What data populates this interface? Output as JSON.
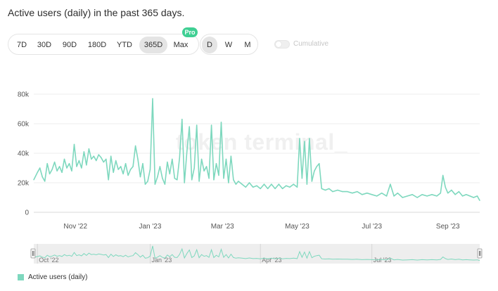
{
  "header": {
    "title": "Active users (daily) in the past 365 days."
  },
  "range_buttons": [
    "7D",
    "30D",
    "90D",
    "180D",
    "YTD",
    "365D",
    "Max"
  ],
  "range_active": "365D",
  "pro_badge": "Pro",
  "granularity_buttons": [
    "D",
    "W",
    "M"
  ],
  "granularity_active": "D",
  "cumulative_label": "Cumulative",
  "watermark": "token terminal_",
  "colors": {
    "series": "#7ed8be",
    "grid": "#ececec"
  },
  "navigator": {
    "labels": [
      "Oct '22",
      "Jan '23",
      "Apr '23",
      "Jul '23"
    ]
  },
  "chart_data": {
    "type": "line",
    "x_type": "date",
    "x_range": [
      "2022-09-28",
      "2023-09-27"
    ],
    "x_tick_labels": [
      "Nov '22",
      "Jan '23",
      "Mar '23",
      "May '23",
      "Jul '23",
      "Sep '23"
    ],
    "ylim": [
      0,
      80000
    ],
    "y_ticks": [
      0,
      20000,
      40000,
      60000,
      80000
    ],
    "y_tick_labels": [
      "0",
      "20k",
      "40k",
      "60k",
      "80k"
    ],
    "grid": true,
    "legend": {
      "position": "bottom-left"
    },
    "series": [
      {
        "name": "Active users (daily)",
        "color": "#7ed8be",
        "points": [
          [
            "2022-09-28",
            22000
          ],
          [
            "2022-10-01",
            27000
          ],
          [
            "2022-10-03",
            30000
          ],
          [
            "2022-10-05",
            24000
          ],
          [
            "2022-10-07",
            21000
          ],
          [
            "2022-10-09",
            33000
          ],
          [
            "2022-10-11",
            26000
          ],
          [
            "2022-10-13",
            29000
          ],
          [
            "2022-10-15",
            34000
          ],
          [
            "2022-10-17",
            28000
          ],
          [
            "2022-10-19",
            31000
          ],
          [
            "2022-10-21",
            27000
          ],
          [
            "2022-10-23",
            36000
          ],
          [
            "2022-10-25",
            30000
          ],
          [
            "2022-10-27",
            33000
          ],
          [
            "2022-10-29",
            28000
          ],
          [
            "2022-10-31",
            46000
          ],
          [
            "2022-11-02",
            31000
          ],
          [
            "2022-11-04",
            35000
          ],
          [
            "2022-11-06",
            30000
          ],
          [
            "2022-11-08",
            41000
          ],
          [
            "2022-11-10",
            32000
          ],
          [
            "2022-11-12",
            43000
          ],
          [
            "2022-11-14",
            36000
          ],
          [
            "2022-11-16",
            38000
          ],
          [
            "2022-11-18",
            35000
          ],
          [
            "2022-11-20",
            39000
          ],
          [
            "2022-11-22",
            37000
          ],
          [
            "2022-11-24",
            34000
          ],
          [
            "2022-11-26",
            36000
          ],
          [
            "2022-11-28",
            22000
          ],
          [
            "2022-11-30",
            38000
          ],
          [
            "2022-12-02",
            27000
          ],
          [
            "2022-12-04",
            35000
          ],
          [
            "2022-12-06",
            29000
          ],
          [
            "2022-12-08",
            31000
          ],
          [
            "2022-12-10",
            26000
          ],
          [
            "2022-12-12",
            33000
          ],
          [
            "2022-12-14",
            25000
          ],
          [
            "2022-12-16",
            29000
          ],
          [
            "2022-12-18",
            31000
          ],
          [
            "2022-12-20",
            45000
          ],
          [
            "2022-12-22",
            36000
          ],
          [
            "2022-12-24",
            24000
          ],
          [
            "2022-12-26",
            33000
          ],
          [
            "2022-12-28",
            19000
          ],
          [
            "2022-12-30",
            21000
          ],
          [
            "2023-01-01",
            29000
          ],
          [
            "2023-01-03",
            77000
          ],
          [
            "2023-01-05",
            19000
          ],
          [
            "2023-01-07",
            24000
          ],
          [
            "2023-01-09",
            31000
          ],
          [
            "2023-01-11",
            23000
          ],
          [
            "2023-01-13",
            19000
          ],
          [
            "2023-01-15",
            34000
          ],
          [
            "2023-01-17",
            26000
          ],
          [
            "2023-01-19",
            36000
          ],
          [
            "2023-01-21",
            23000
          ],
          [
            "2023-01-23",
            22000
          ],
          [
            "2023-01-25",
            37000
          ],
          [
            "2023-01-27",
            63000
          ],
          [
            "2023-01-29",
            20000
          ],
          [
            "2023-01-31",
            41000
          ],
          [
            "2023-02-02",
            58000
          ],
          [
            "2023-02-04",
            22000
          ],
          [
            "2023-02-06",
            30000
          ],
          [
            "2023-02-08",
            59000
          ],
          [
            "2023-02-10",
            21000
          ],
          [
            "2023-02-12",
            36000
          ],
          [
            "2023-02-14",
            28000
          ],
          [
            "2023-02-16",
            31000
          ],
          [
            "2023-02-18",
            23000
          ],
          [
            "2023-02-20",
            59000
          ],
          [
            "2023-02-22",
            22000
          ],
          [
            "2023-02-24",
            33000
          ],
          [
            "2023-02-26",
            25000
          ],
          [
            "2023-02-28",
            61000
          ],
          [
            "2023-03-02",
            23000
          ],
          [
            "2023-03-04",
            36000
          ],
          [
            "2023-03-06",
            20000
          ],
          [
            "2023-03-08",
            38000
          ],
          [
            "2023-03-10",
            22000
          ],
          [
            "2023-03-12",
            19000
          ],
          [
            "2023-03-14",
            21000
          ],
          [
            "2023-03-17",
            19000
          ],
          [
            "2023-03-20",
            17000
          ],
          [
            "2023-03-23",
            20000
          ],
          [
            "2023-03-26",
            17000
          ],
          [
            "2023-03-29",
            18000
          ],
          [
            "2023-04-01",
            16000
          ],
          [
            "2023-04-04",
            19000
          ],
          [
            "2023-04-07",
            16000
          ],
          [
            "2023-04-10",
            19000
          ],
          [
            "2023-04-13",
            16000
          ],
          [
            "2023-04-16",
            19000
          ],
          [
            "2023-04-19",
            16000
          ],
          [
            "2023-04-22",
            18000
          ],
          [
            "2023-04-25",
            17000
          ],
          [
            "2023-04-28",
            19000
          ],
          [
            "2023-05-01",
            17000
          ],
          [
            "2023-05-03",
            50000
          ],
          [
            "2023-05-05",
            23000
          ],
          [
            "2023-05-07",
            48000
          ],
          [
            "2023-05-09",
            19000
          ],
          [
            "2023-05-11",
            50000
          ],
          [
            "2023-05-13",
            21000
          ],
          [
            "2023-05-15",
            28000
          ],
          [
            "2023-05-17",
            31000
          ],
          [
            "2023-05-19",
            33000
          ],
          [
            "2023-05-21",
            16000
          ],
          [
            "2023-05-24",
            15000
          ],
          [
            "2023-05-27",
            16000
          ],
          [
            "2023-05-30",
            14000
          ],
          [
            "2023-06-03",
            15000
          ],
          [
            "2023-06-07",
            14000
          ],
          [
            "2023-06-11",
            14000
          ],
          [
            "2023-06-15",
            13000
          ],
          [
            "2023-06-19",
            14000
          ],
          [
            "2023-06-23",
            12000
          ],
          [
            "2023-06-27",
            13000
          ],
          [
            "2023-07-01",
            12000
          ],
          [
            "2023-07-05",
            11000
          ],
          [
            "2023-07-09",
            13000
          ],
          [
            "2023-07-13",
            11000
          ],
          [
            "2023-07-16",
            19000
          ],
          [
            "2023-07-19",
            11000
          ],
          [
            "2023-07-22",
            13000
          ],
          [
            "2023-07-26",
            10000
          ],
          [
            "2023-07-30",
            11000
          ],
          [
            "2023-08-03",
            12000
          ],
          [
            "2023-08-07",
            10000
          ],
          [
            "2023-08-11",
            12000
          ],
          [
            "2023-08-15",
            11000
          ],
          [
            "2023-08-19",
            12000
          ],
          [
            "2023-08-23",
            11000
          ],
          [
            "2023-08-26",
            13000
          ],
          [
            "2023-08-28",
            25000
          ],
          [
            "2023-08-30",
            17000
          ],
          [
            "2023-09-01",
            13000
          ],
          [
            "2023-09-04",
            15000
          ],
          [
            "2023-09-07",
            12000
          ],
          [
            "2023-09-10",
            14000
          ],
          [
            "2023-09-13",
            11000
          ],
          [
            "2023-09-16",
            12000
          ],
          [
            "2023-09-19",
            11000
          ],
          [
            "2023-09-22",
            10000
          ],
          [
            "2023-09-25",
            11000
          ],
          [
            "2023-09-27",
            8000
          ]
        ]
      }
    ]
  }
}
